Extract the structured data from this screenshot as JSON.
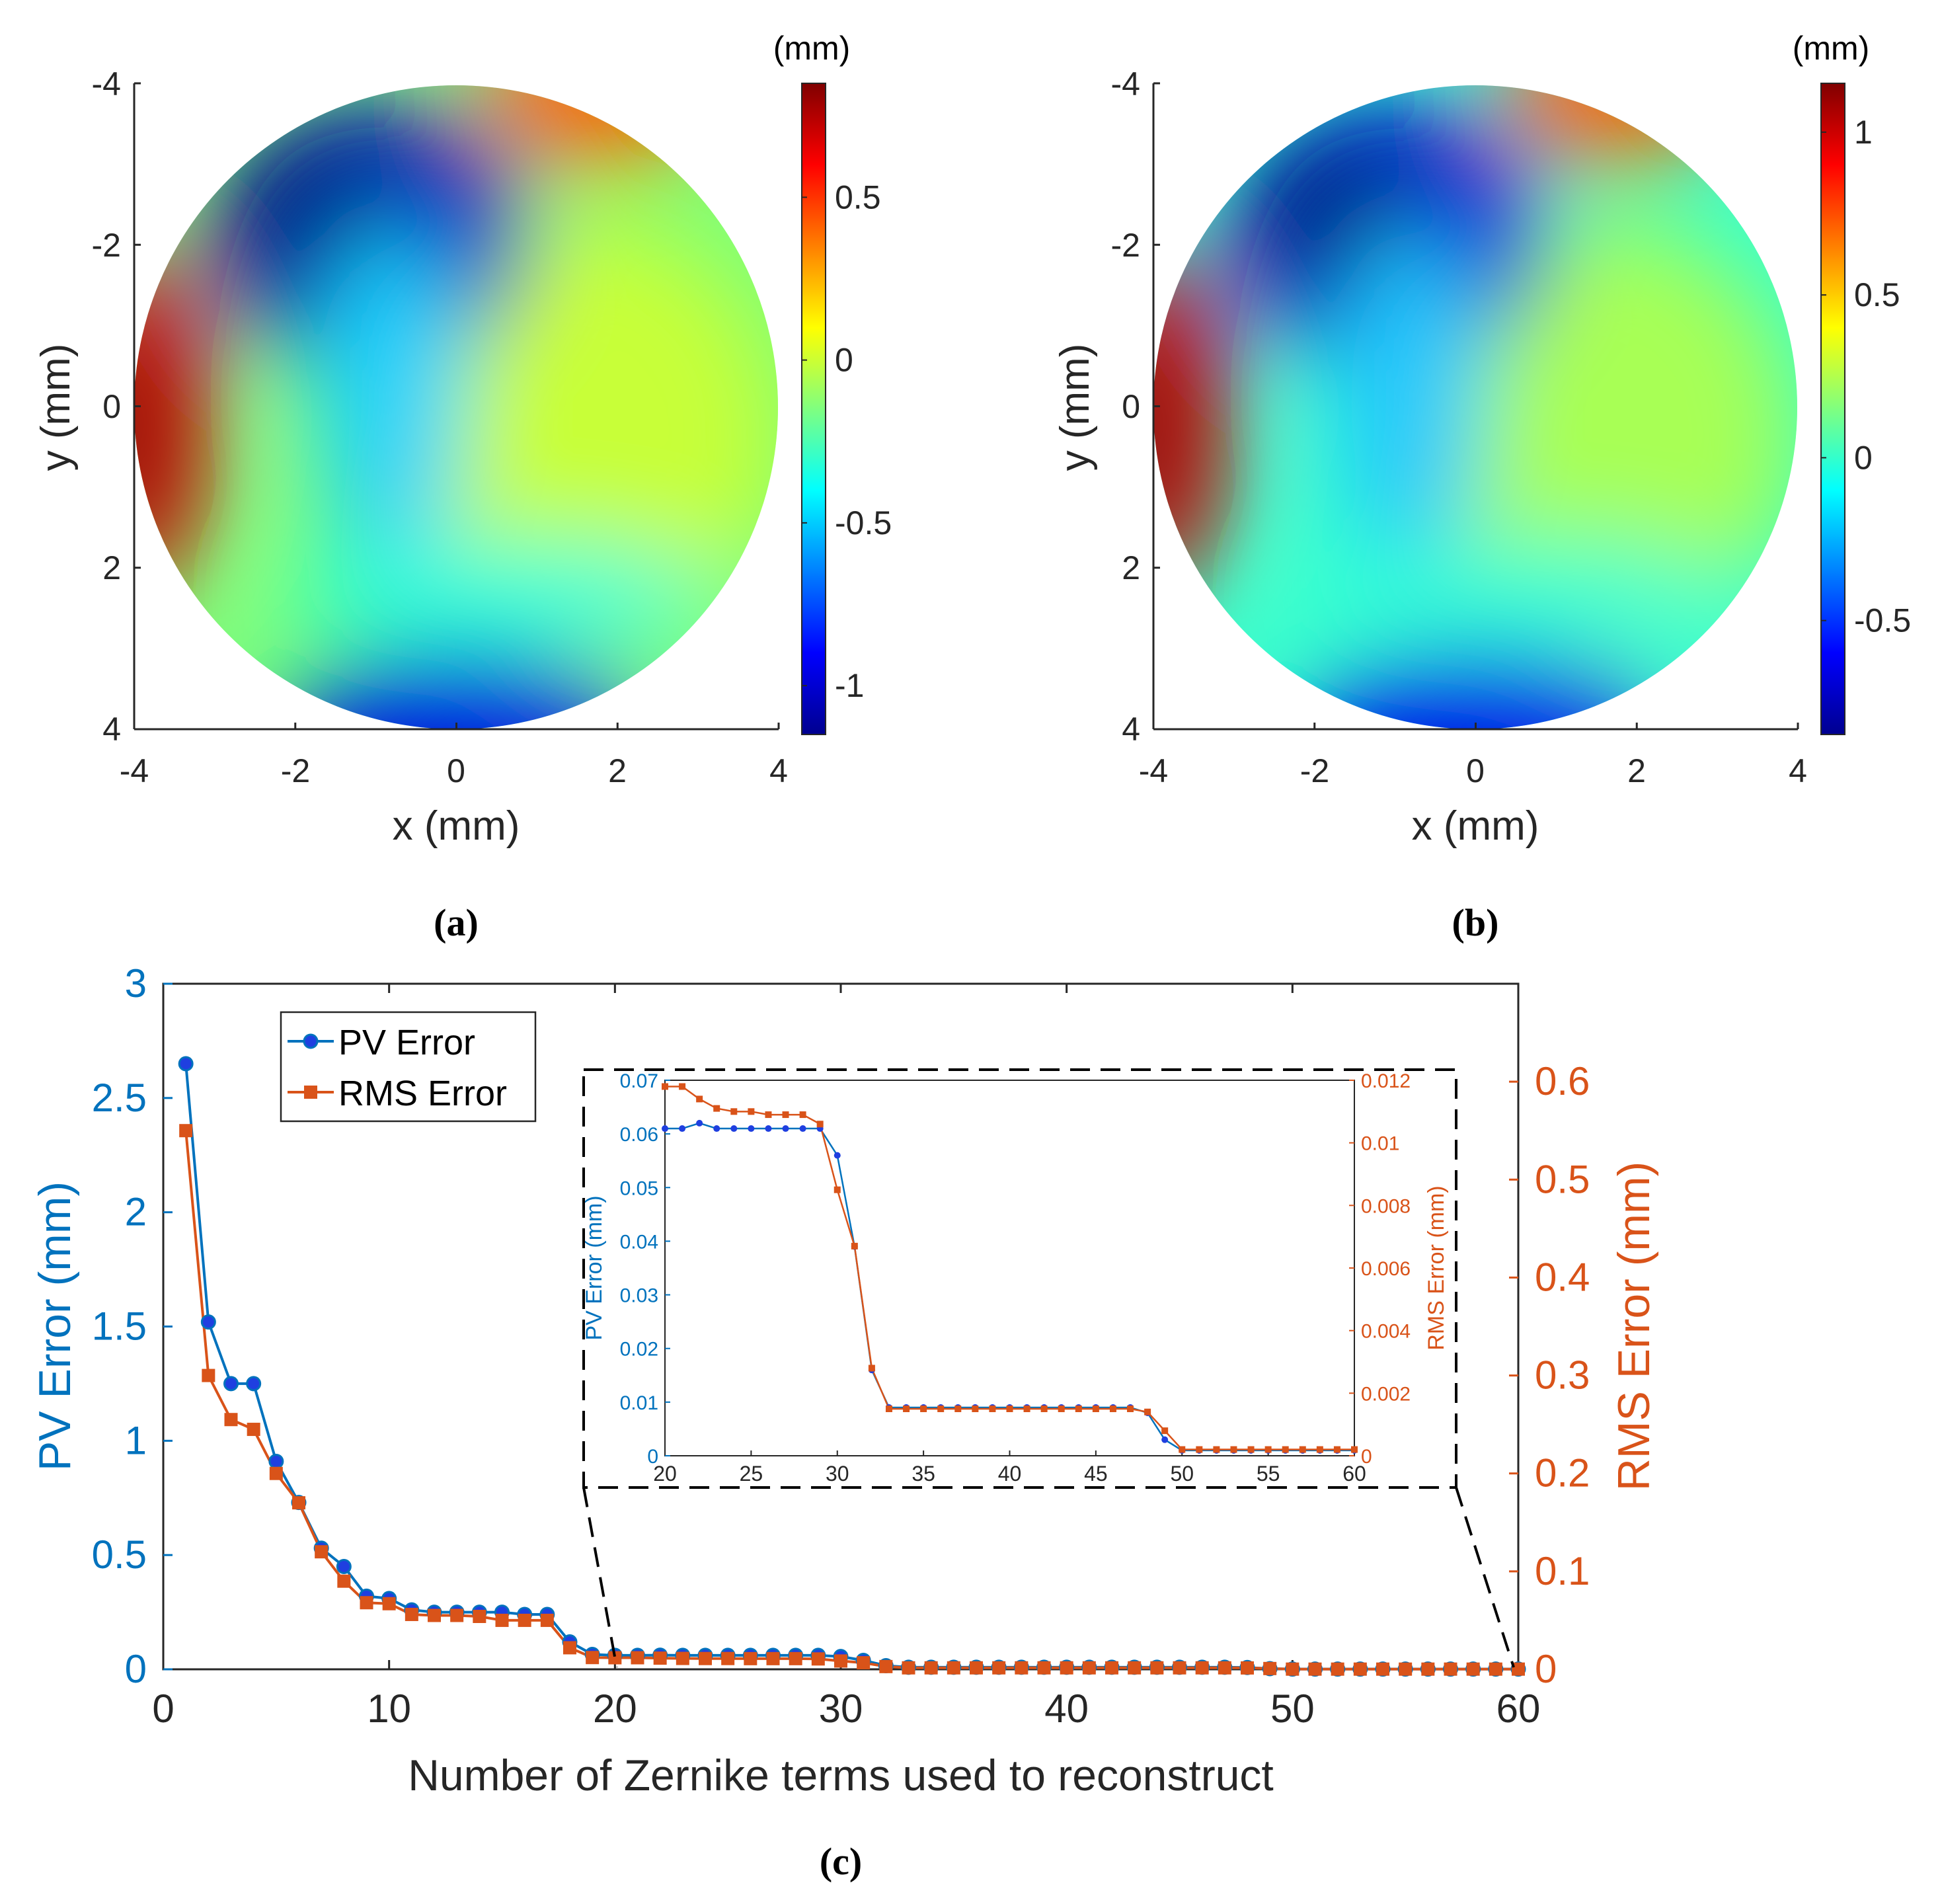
{
  "colors": {
    "pv": "#0072BD",
    "rms": "#D95319",
    "axis": "#262626"
  },
  "panels": {
    "a": {
      "caption": "(a)",
      "unit": "(mm)",
      "xlabel": "x (mm)",
      "ylabel": "y (mm)",
      "xticks": [
        "-4",
        "-2",
        "0",
        "2",
        "4"
      ],
      "yticks": [
        "-4",
        "-2",
        "0",
        "2",
        "4"
      ],
      "colorbar_ticks": [
        "0.5",
        "0",
        "-0.5",
        "-1"
      ],
      "colorbar_range": [
        -1.15,
        0.85
      ]
    },
    "b": {
      "caption": "(b)",
      "unit": "(mm)",
      "xlabel": "x (mm)",
      "ylabel": "y (mm)",
      "xticks": [
        "-4",
        "-2",
        "0",
        "2",
        "4"
      ],
      "yticks": [
        "-4",
        "-2",
        "0",
        "2",
        "4"
      ],
      "colorbar_ticks": [
        "1",
        "0.5",
        "0",
        "-0.5"
      ],
      "colorbar_range": [
        -0.85,
        1.15
      ]
    },
    "c": {
      "caption": "(c)"
    }
  },
  "chart_data": [
    {
      "type": "heatmap",
      "panel": "a",
      "xlabel": "x (mm)",
      "ylabel": "y (mm)",
      "xlim": [
        -4,
        4
      ],
      "ylim": [
        4,
        -4
      ],
      "colorbar_label": "(mm)",
      "colorbar_lim": [
        -1.15,
        0.85
      ],
      "colormap": "jet",
      "description_values": "circular wavefront map of radius 4 mm"
    },
    {
      "type": "heatmap",
      "panel": "b",
      "xlabel": "x (mm)",
      "ylabel": "y (mm)",
      "xlim": [
        -4,
        4
      ],
      "ylim": [
        4,
        -4
      ],
      "colorbar_label": "(mm)",
      "colorbar_lim": [
        -0.85,
        1.15
      ],
      "colormap": "jet"
    },
    {
      "type": "line",
      "panel": "c",
      "xlabel": "Number of Zernike terms used to reconstruct",
      "ylabel": "PV Error (mm)",
      "ylabel_right": "RMS Error (mm)",
      "xlim": [
        0,
        60
      ],
      "ylim": [
        0,
        3
      ],
      "ylim_right": [
        0,
        0.7
      ],
      "xticks": [
        "0",
        "10",
        "20",
        "30",
        "40",
        "50",
        "60"
      ],
      "yticks": [
        "0",
        "0.5",
        "1",
        "1.5",
        "2",
        "2.5",
        "3"
      ],
      "yticks_right": [
        "0",
        "0.1",
        "0.2",
        "0.3",
        "0.4",
        "0.5",
        "0.6"
      ],
      "legend": [
        "PV Error",
        "RMS Error"
      ],
      "legend_position": "top-left",
      "x": [
        1,
        2,
        3,
        4,
        5,
        6,
        7,
        8,
        9,
        10,
        11,
        12,
        13,
        14,
        15,
        16,
        17,
        18,
        19,
        20,
        21,
        22,
        23,
        24,
        25,
        26,
        27,
        28,
        29,
        30,
        31,
        32,
        33,
        34,
        35,
        36,
        37,
        38,
        39,
        40,
        41,
        42,
        43,
        44,
        45,
        46,
        47,
        48,
        49,
        50,
        51,
        52,
        53,
        54,
        55,
        56,
        57,
        58,
        59,
        60
      ],
      "series": [
        {
          "name": "PV Error",
          "axis": "left",
          "values": [
            2.65,
            1.52,
            1.25,
            1.25,
            0.91,
            0.73,
            0.53,
            0.45,
            0.32,
            0.31,
            0.26,
            0.25,
            0.25,
            0.25,
            0.25,
            0.24,
            0.24,
            0.12,
            0.065,
            0.061,
            0.061,
            0.062,
            0.061,
            0.061,
            0.061,
            0.061,
            0.061,
            0.061,
            0.061,
            0.056,
            0.039,
            0.016,
            0.009,
            0.009,
            0.009,
            0.009,
            0.009,
            0.009,
            0.009,
            0.009,
            0.009,
            0.009,
            0.009,
            0.009,
            0.009,
            0.009,
            0.009,
            0.008,
            0.003,
            0.001,
            0.001,
            0.001,
            0.001,
            0.001,
            0.001,
            0.001,
            0.001,
            0.001,
            0.001,
            0.001
          ]
        },
        {
          "name": "RMS Error",
          "axis": "right",
          "values": [
            0.55,
            0.3,
            0.255,
            0.245,
            0.2,
            0.17,
            0.12,
            0.09,
            0.068,
            0.067,
            0.056,
            0.055,
            0.055,
            0.054,
            0.05,
            0.05,
            0.05,
            0.022,
            0.012,
            0.0118,
            0.0118,
            0.0114,
            0.0111,
            0.011,
            0.011,
            0.0109,
            0.0109,
            0.0109,
            0.0106,
            0.0085,
            0.0067,
            0.0028,
            0.0015,
            0.0015,
            0.0015,
            0.0015,
            0.0015,
            0.0015,
            0.0015,
            0.0015,
            0.0015,
            0.0015,
            0.0015,
            0.0015,
            0.0015,
            0.0015,
            0.0015,
            0.0014,
            0.0008,
            0.0002,
            0.0002,
            0.0002,
            0.0002,
            0.0002,
            0.0002,
            0.0002,
            0.0002,
            0.0002,
            0.0002,
            0.0002
          ]
        }
      ],
      "inset": {
        "xlim": [
          20,
          60
        ],
        "ylim": [
          0,
          0.07
        ],
        "ylim_right": [
          0,
          0.012
        ],
        "xticks": [
          "20",
          "25",
          "30",
          "35",
          "40",
          "45",
          "50",
          "55",
          "60"
        ],
        "yticks": [
          "0",
          "0.01",
          "0.02",
          "0.03",
          "0.04",
          "0.05",
          "0.06",
          "0.07"
        ],
        "yticks_right": [
          "0",
          "0.002",
          "0.004",
          "0.006",
          "0.008",
          "0.01",
          "0.012"
        ],
        "ylabel": "PV Error (mm)",
        "ylabel_right": "RMS Error (mm)"
      }
    }
  ]
}
